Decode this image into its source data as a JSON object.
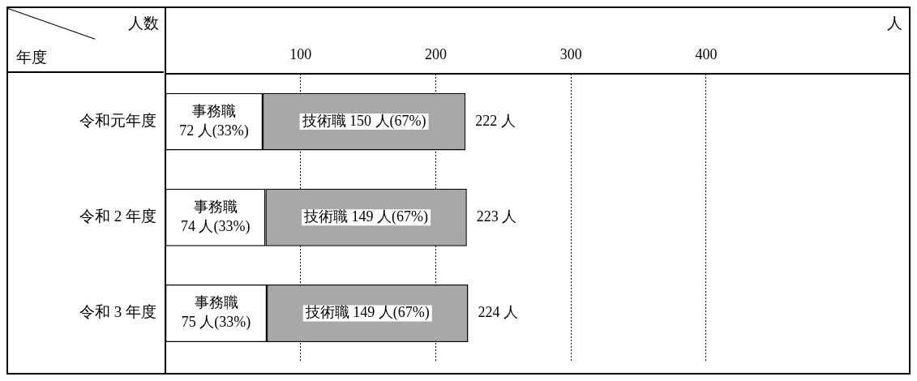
{
  "chart_data": {
    "type": "bar",
    "orientation": "horizontal",
    "stacked": true,
    "xlabel": "人数",
    "ylabel": "年度",
    "annotations": [
      "人"
    ],
    "categories": [
      "令和元年度",
      "令和 2 年度",
      "令和 3 年度"
    ],
    "series": [
      {
        "name": "事務職",
        "color": "#ffffff",
        "values": [
          72,
          74,
          75
        ],
        "value_labels": [
          "72 人(33%)",
          "74 人(33%)",
          "75 人(33%)"
        ]
      },
      {
        "name": "技術職",
        "color": "#a8a8a8",
        "values": [
          150,
          149,
          149
        ],
        "value_labels": [
          "150 人(67%)",
          "149 人(67%)",
          "149 人(67%)"
        ]
      }
    ],
    "totals": [
      "222 人",
      "223 人",
      "224 人"
    ],
    "xlim": [
      0,
      550
    ],
    "xticks": [
      100,
      200,
      300,
      400
    ],
    "grid": "x",
    "legend": false
  }
}
